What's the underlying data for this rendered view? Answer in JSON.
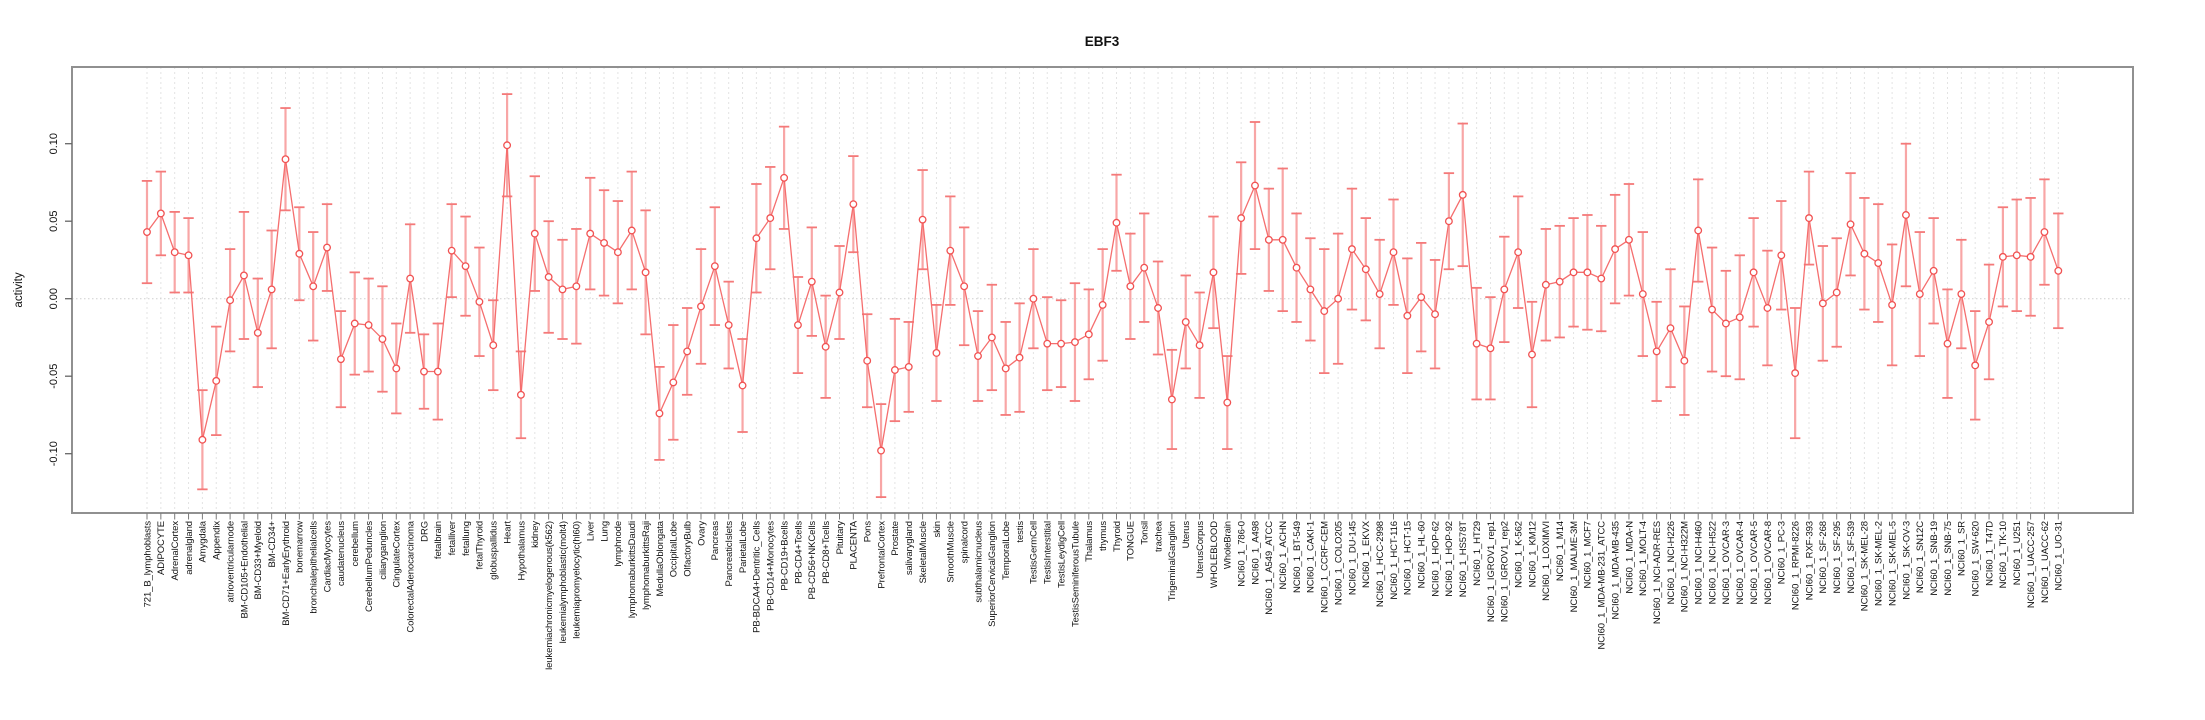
{
  "page": {
    "background": "#ffffff"
  },
  "chart_data": {
    "type": "line",
    "title": "EBF3",
    "xlabel": "",
    "ylabel": "activity",
    "legend_position": "none",
    "point_style": "open circles with error bars (type='b')",
    "ylim": [
      -0.138,
      0.149
    ],
    "ytick_values": [
      -0.1,
      -0.05,
      0.0,
      0.05,
      0.1
    ],
    "ytick_labels": [
      "-0.10",
      "-0.05",
      "0.00",
      "0.05",
      "0.10"
    ],
    "grid": {
      "vertical_dashed_per_category": true,
      "dotted_zero_line": true
    },
    "categories": [
      "721_B_lymphoblasts",
      "ADIPOCYTE",
      "AdrenalCortex",
      "adrenalgland",
      "Amygdala",
      "Appendix",
      "atrioventricularnode",
      "BM-CD105+Endothelial",
      "BM-CD33+Myeloid",
      "BM-CD34+",
      "BM-CD71+EarlyErythroid",
      "bonemarrow",
      "bronchialepithelialcells",
      "CardiacMyocytes",
      "caudatenucleus",
      "cerebellum",
      "CerebellumPeduncles",
      "ciliaryganglion",
      "CingulateCortex",
      "ColorectalAdenocarcinoma",
      "DRG",
      "fetalbrain",
      "fetalliver",
      "fetallung",
      "fetalThyroid",
      "globuspallidus",
      "Heart",
      "Hypothalamus",
      "kidney",
      "leukemiachronicmyelogenous(k562)",
      "leukemialymphoblastic(molt4)",
      "leukemiapromyelocytic(hl60)",
      "Liver",
      "Lung",
      "lymphnode",
      "lymphomaburkittsDaudi",
      "lymphomaburkittsRaji",
      "MedullaOblongata",
      "OccipitalLobe",
      "OlfactoryBulb",
      "Ovary",
      "Pancreas",
      "PancreaticIslets",
      "ParietalLobe",
      "PB-BDCA4+Dentritic_Cells",
      "PB-CD14+Monocytes",
      "PB-CD19+Bcells",
      "PB-CD4+Tcells",
      "PB-CD56+NKCells",
      "PB-CD8+Tcells",
      "Pituitary",
      "PLACENTA",
      "Pons",
      "PrefrontalCortex",
      "Prostate",
      "salivarygland",
      "SkeletalMuscle",
      "skin",
      "SmoothMuscle",
      "spinalcord",
      "subthalamicnucleus",
      "SuperiorCervicalGanglion",
      "TemporalLobe",
      "testis",
      "TestisGermCell",
      "TestisInterstitial",
      "TestisLeydigCell",
      "TestisSeminiferousTubule",
      "Thalamus",
      "thymus",
      "Thyroid",
      "TONGUE",
      "Tonsil",
      "trachea",
      "TrigeminalGanglion",
      "Uterus",
      "UterusCorpus",
      "WHOLEBLOOD",
      "WholeBrain",
      "NCI60_1_786-0",
      "NCI60_1_A498",
      "NCI60_1_A549_ATCC",
      "NCI60_1_ACHN",
      "NCI60_1_BT-549",
      "NCI60_1_CAKI-1",
      "NCI60_1_CCRF-CEM",
      "NCI60_1_COLO205",
      "NCI60_1_DU-145",
      "NCI60_1_EKVX",
      "NCI60_1_HCC-2998",
      "NCI60_1_HCT-116",
      "NCI60_1_HCT-15",
      "NCI60_1_HL-60",
      "NCI60_1_HOP-62",
      "NCI60_1_HOP-92",
      "NCI60_1_HS578T",
      "NCI60_1_HT29",
      "NCI60_1_IGROV1_rep1",
      "NCI60_1_IGROV1_rep2",
      "NCI60_1_K-562",
      "NCI60_1_KM12",
      "NCI60_1_LOXIMVI",
      "NCI60_1_M14",
      "NCI60_1_MALME-3M",
      "NCI60_1_MCF7",
      "NCI60_1_MDA-MB-231_ATCC",
      "NCI60_1_MDA-MB-435",
      "NCI60_1_MDA-N",
      "NCI60_1_MOLT-4",
      "NCI60_1_NCI-ADR-RES",
      "NCI60_1_NCI-H226",
      "NCI60_1_NCI-H322M",
      "NCI60_1_NCI-H460",
      "NCI60_1_NCI-H522",
      "NCI60_1_OVCAR-3",
      "NCI60_1_OVCAR-4",
      "NCI60_1_OVCAR-5",
      "NCI60_1_OVCAR-8",
      "NCI60_1_PC-3",
      "NCI60_1_RPMI-8226",
      "NCI60_1_RXF-393",
      "NCI60_1_SF-268",
      "NCI60_1_SF-295",
      "NCI60_1_SF-539",
      "NCI60_1_SK-MEL-28",
      "NCI60_1_SK-MEL-2",
      "NCI60_1_SK-MEL-5",
      "NCI60_1_SK-OV-3",
      "NCI60_1_SN12C",
      "NCI60_1_SNB-19",
      "NCI60_1_SNB-75",
      "NCI60_1_SR",
      "NCI60_1_SW-620",
      "NCI60_1_T47D",
      "NCI60_1_TK-10",
      "NCI60_1_U251",
      "NCI60_1_UACC-257",
      "NCI60_1_UACC-62",
      "NCI60_1_UO-31"
    ],
    "values": [
      0.043,
      0.055,
      0.03,
      0.028,
      -0.091,
      -0.053,
      -0.001,
      0.015,
      -0.022,
      0.006,
      0.09,
      0.029,
      0.008,
      0.033,
      -0.039,
      -0.016,
      -0.017,
      -0.026,
      -0.045,
      0.013,
      -0.047,
      -0.047,
      0.031,
      0.021,
      -0.002,
      -0.03,
      0.099,
      -0.062,
      0.042,
      0.014,
      0.006,
      0.008,
      0.042,
      0.036,
      0.03,
      0.044,
      0.017,
      -0.074,
      -0.054,
      -0.034,
      -0.005,
      0.021,
      -0.017,
      -0.056,
      0.039,
      0.052,
      0.078,
      -0.017,
      0.011,
      -0.031,
      0.004,
      0.061,
      -0.04,
      -0.098,
      -0.046,
      -0.044,
      0.051,
      -0.035,
      0.031,
      0.008,
      -0.037,
      -0.025,
      -0.045,
      -0.038,
      0.0,
      -0.029,
      -0.029,
      -0.028,
      -0.023,
      -0.004,
      0.049,
      0.008,
      0.02,
      -0.006,
      -0.065,
      -0.015,
      -0.03,
      0.017,
      -0.067,
      0.052,
      0.073,
      0.038,
      0.038,
      0.02,
      0.006,
      -0.008,
      0.0,
      0.032,
      0.019,
      0.003,
      0.03,
      -0.011,
      0.001,
      -0.01,
      0.05,
      0.067,
      -0.029,
      -0.032,
      0.006,
      0.03,
      -0.036,
      0.009,
      0.011,
      0.017,
      0.017,
      0.013,
      0.032,
      0.038,
      0.003,
      -0.034,
      -0.019,
      -0.04,
      0.044,
      -0.007,
      -0.016,
      -0.012,
      0.017,
      -0.006,
      0.028,
      -0.048,
      0.052,
      -0.003,
      0.004,
      0.048,
      0.029,
      0.023,
      -0.004,
      0.054,
      0.003,
      0.018,
      -0.029,
      0.003,
      -0.043,
      -0.015,
      0.027,
      0.028,
      0.027,
      0.043,
      0.018
    ],
    "errors": [
      0.033,
      0.027,
      0.026,
      0.024,
      0.032,
      0.035,
      0.033,
      0.041,
      0.035,
      0.038,
      0.033,
      0.03,
      0.035,
      0.028,
      0.031,
      0.033,
      0.03,
      0.034,
      0.029,
      0.035,
      0.024,
      0.031,
      0.03,
      0.032,
      0.035,
      0.029,
      0.033,
      0.028,
      0.037,
      0.036,
      0.032,
      0.037,
      0.036,
      0.034,
      0.033,
      0.038,
      0.04,
      0.03,
      0.037,
      0.028,
      0.037,
      0.038,
      0.028,
      0.03,
      0.035,
      0.033,
      0.033,
      0.031,
      0.035,
      0.033,
      0.03,
      0.031,
      0.03,
      0.03,
      0.033,
      0.029,
      0.032,
      0.031,
      0.035,
      0.038,
      0.029,
      0.034,
      0.03,
      0.035,
      0.032,
      0.03,
      0.028,
      0.038,
      0.029,
      0.036,
      0.031,
      0.034,
      0.035,
      0.03,
      0.032,
      0.03,
      0.034,
      0.036,
      0.03,
      0.036,
      0.041,
      0.033,
      0.046,
      0.035,
      0.033,
      0.04,
      0.042,
      0.039,
      0.033,
      0.035,
      0.034,
      0.037,
      0.035,
      0.035,
      0.031,
      0.046,
      0.036,
      0.033,
      0.034,
      0.036,
      0.034,
      0.036,
      0.036,
      0.035,
      0.037,
      0.034,
      0.035,
      0.036,
      0.04,
      0.032,
      0.038,
      0.035,
      0.033,
      0.04,
      0.034,
      0.04,
      0.035,
      0.037,
      0.035,
      0.042,
      0.03,
      0.037,
      0.035,
      0.033,
      0.036,
      0.038,
      0.039,
      0.046,
      0.04,
      0.034,
      0.035,
      0.035,
      0.035,
      0.037,
      0.032,
      0.036,
      0.038,
      0.034,
      0.037
    ]
  },
  "colors": {
    "series": "#f15252",
    "connector_line": "#f56e6e",
    "error_bar": "#f8a6a6",
    "error_cap": "#f47979",
    "gridline": "#e3e3e3",
    "zero_line": "#cfcfcf",
    "axis_box": "#909090",
    "tick": "#666666",
    "category_tick": "#7a7a7a",
    "text": "#111111",
    "background": "#ffffff"
  }
}
